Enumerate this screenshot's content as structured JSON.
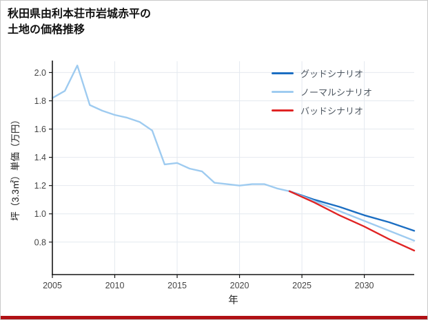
{
  "page": {
    "title_line1": "秋田県由利本荘市岩城赤平の",
    "title_line2": "土地の価格推移"
  },
  "accent": {
    "bottom_bar_color": "#b01015"
  },
  "chart_data": {
    "type": "line",
    "title": "秋田県由利本荘市岩城赤平の土地の価格推移",
    "xlabel": "年",
    "ylabel": "坪（3.3㎡）単価（万円）",
    "x_ticks": [
      2005,
      2010,
      2015,
      2020,
      2025,
      2030
    ],
    "y_ticks": [
      0.8,
      1.0,
      1.2,
      1.4,
      1.6,
      1.8,
      2.0
    ],
    "xlim": [
      2005,
      2034
    ],
    "ylim": [
      0.57,
      2.08
    ],
    "grid": true,
    "legend_position": "top-right",
    "colors": {
      "grid": "#e4e9ef",
      "axis": "#141414",
      "tick_label": "#444444",
      "axis_label": "#1a1a1a"
    },
    "legend": [
      {
        "label": "グッドシナリオ",
        "color": "#1b6ec2"
      },
      {
        "label": "ノーマルシナリオ",
        "color": "#9ecbf0"
      },
      {
        "label": "バッドシナリオ",
        "color": "#e02424"
      }
    ],
    "series": [
      {
        "id": "historical",
        "label": null,
        "color": "#9ecbf0",
        "points": [
          [
            2005,
            1.82
          ],
          [
            2006,
            1.87
          ],
          [
            2007,
            2.05
          ],
          [
            2008,
            1.77
          ],
          [
            2009,
            1.73
          ],
          [
            2010,
            1.7
          ],
          [
            2011,
            1.68
          ],
          [
            2012,
            1.65
          ],
          [
            2013,
            1.59
          ],
          [
            2014,
            1.35
          ],
          [
            2015,
            1.36
          ],
          [
            2016,
            1.32
          ],
          [
            2017,
            1.3
          ],
          [
            2018,
            1.22
          ],
          [
            2019,
            1.21
          ],
          [
            2020,
            1.2
          ],
          [
            2021,
            1.21
          ],
          [
            2022,
            1.21
          ],
          [
            2023,
            1.18
          ],
          [
            2024,
            1.16
          ]
        ]
      },
      {
        "id": "good",
        "label": "グッドシナリオ",
        "color": "#1b6ec2",
        "points": [
          [
            2024,
            1.16
          ],
          [
            2026,
            1.1
          ],
          [
            2028,
            1.05
          ],
          [
            2030,
            0.99
          ],
          [
            2032,
            0.94
          ],
          [
            2034,
            0.88
          ]
        ]
      },
      {
        "id": "normal",
        "label": "ノーマルシナリオ",
        "color": "#9ecbf0",
        "points": [
          [
            2024,
            1.16
          ],
          [
            2026,
            1.09
          ],
          [
            2028,
            1.02
          ],
          [
            2030,
            0.95
          ],
          [
            2032,
            0.88
          ],
          [
            2034,
            0.81
          ]
        ]
      },
      {
        "id": "bad",
        "label": "バッドシナリオ",
        "color": "#e02424",
        "points": [
          [
            2024,
            1.16
          ],
          [
            2026,
            1.08
          ],
          [
            2028,
            0.99
          ],
          [
            2030,
            0.91
          ],
          [
            2032,
            0.82
          ],
          [
            2034,
            0.74
          ]
        ]
      }
    ]
  }
}
